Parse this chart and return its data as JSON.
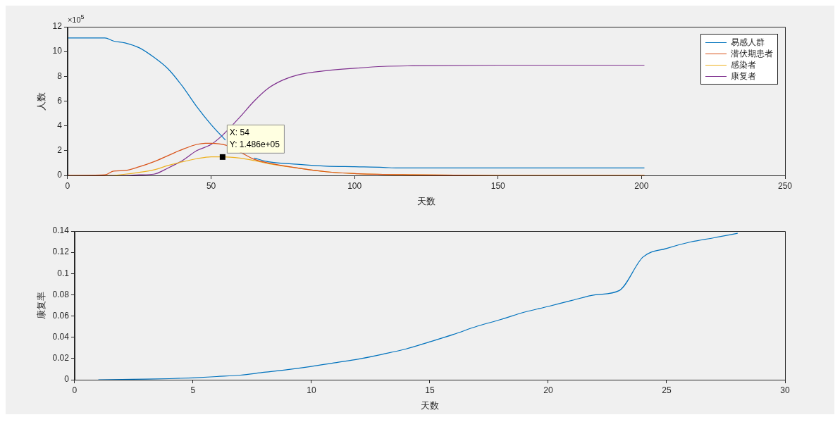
{
  "chart_data": [
    {
      "type": "line",
      "xlabel": "天数",
      "ylabel": "人数",
      "xlim": [
        0,
        250
      ],
      "xticks": [
        0,
        50,
        100,
        150,
        200,
        250
      ],
      "ylim": [
        0,
        12
      ],
      "yticks": [
        0,
        2,
        4,
        6,
        8,
        10,
        12
      ],
      "grid": false,
      "legend": "top right",
      "marker": "none",
      "line_style": "solid",
      "annotations": [
        "×10$^{5}$",
        {
          "text": "X: 54\nY: 1.486e+05",
          "x": 54,
          "y": 1.486
        }
      ],
      "series": [
        {
          "name": "易感人群",
          "color": "#0072bd",
          "x": [
            0,
            13,
            16,
            20,
            25,
            30,
            35,
            40,
            45,
            50,
            55,
            60,
            65,
            70,
            80,
            90,
            100,
            110,
            115,
            150,
            201
          ],
          "values": [
            11.1,
            11.1,
            10.85,
            10.7,
            10.3,
            9.55,
            8.6,
            7.2,
            5.55,
            4.1,
            2.85,
            null,
            1.4,
            1.1,
            0.9,
            0.75,
            0.7,
            0.65,
            0.6,
            0.6,
            0.6
          ]
        },
        {
          "name": "潜伏期患者",
          "color": "#d95319",
          "x": [
            0,
            13,
            16,
            20,
            25,
            30,
            35,
            40,
            45,
            48,
            50,
            55,
            60,
            65,
            70,
            80,
            90,
            100,
            120,
            150,
            201
          ],
          "values": [
            0,
            0.05,
            0.35,
            0.4,
            0.7,
            1.1,
            1.6,
            2.1,
            2.5,
            2.6,
            2.6,
            2.45,
            1.9,
            1.3,
            1.0,
            0.6,
            0.3,
            0.15,
            0.05,
            0,
            0
          ]
        },
        {
          "name": "感染者",
          "color": "#edb120",
          "x": [
            0,
            15,
            20,
            25,
            30,
            35,
            40,
            45,
            50,
            54,
            60,
            65,
            70,
            80,
            90,
            100,
            120,
            150,
            201
          ],
          "values": [
            0,
            0,
            0.1,
            0.25,
            0.45,
            0.8,
            1.1,
            1.35,
            1.5,
            1.5,
            1.4,
            1.2,
            0.95,
            0.6,
            0.3,
            0.15,
            0.05,
            0,
            0
          ]
        },
        {
          "name": "康复者",
          "color": "#7e2f8e",
          "x": [
            0,
            20,
            25,
            30,
            35,
            40,
            45,
            50,
            54,
            60,
            65,
            70,
            75,
            80,
            90,
            100,
            110,
            120,
            150,
            201
          ],
          "values": [
            0,
            0,
            0.05,
            0.1,
            0.6,
            1.2,
            2.0,
            2.5,
            3.25,
            4.7,
            6.0,
            7.05,
            7.7,
            8.1,
            8.45,
            8.65,
            8.8,
            8.85,
            8.9,
            8.9
          ]
        }
      ]
    },
    {
      "type": "line",
      "xlabel": "天数",
      "ylabel": "康复率",
      "xlim": [
        0,
        30
      ],
      "xticks": [
        0,
        5,
        10,
        15,
        20,
        25,
        30
      ],
      "ylim": [
        0,
        0.14
      ],
      "yticks": [
        0,
        0.02,
        0.04,
        0.06,
        0.08,
        0.1,
        0.12,
        0.14
      ],
      "grid": false,
      "legend": false,
      "marker": "none",
      "line_style": "solid",
      "series": [
        {
          "color": "#0072bd",
          "x": [
            1,
            2,
            3,
            4,
            5,
            6,
            7,
            8,
            9,
            10,
            11,
            12,
            13,
            14,
            15,
            16,
            17,
            18,
            19,
            20,
            21,
            22,
            23,
            24,
            25,
            26,
            27,
            28
          ],
          "values": [
            0,
            0.0003,
            0.0006,
            0.001,
            0.0018,
            0.003,
            0.0043,
            0.007,
            0.0095,
            0.0125,
            0.016,
            0.0195,
            0.024,
            0.029,
            0.0357,
            0.0427,
            0.0504,
            0.0567,
            0.0637,
            0.069,
            0.0747,
            0.08,
            0.084,
            0.1155,
            0.1237,
            0.1297,
            0.1337,
            0.1379
          ]
        }
      ]
    }
  ]
}
